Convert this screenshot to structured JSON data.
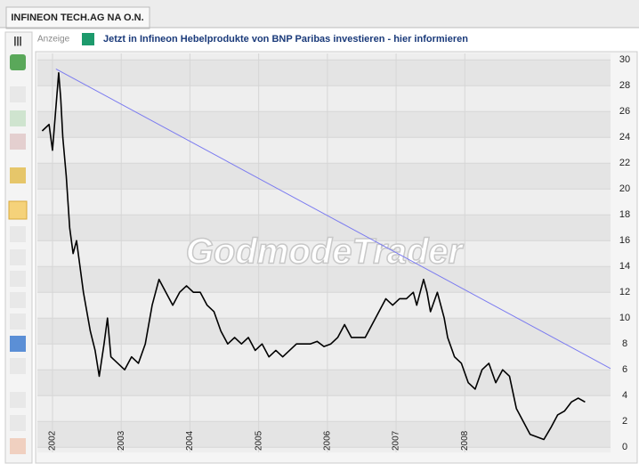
{
  "tab_title": "INFINEON TECH.AG NA O.N.",
  "toolbar_label": "|||",
  "ad": {
    "label": "Anzeige",
    "text": "Jetzt in Infineon Hebelprodukte von BNP Paribas investieren - hier informieren"
  },
  "watermark": "GodmodeTrader",
  "chart_data": {
    "type": "line",
    "x": [
      2001.85,
      2001.95,
      2002.0,
      2002.09,
      2002.12,
      2002.15,
      2002.2,
      2002.25,
      2002.3,
      2002.35,
      2002.45,
      2002.55,
      2002.62,
      2002.68,
      2002.75,
      2002.8,
      2002.85,
      2002.95,
      2003.05,
      2003.15,
      2003.25,
      2003.35,
      2003.45,
      2003.55,
      2003.65,
      2003.75,
      2003.85,
      2003.95,
      2004.05,
      2004.15,
      2004.25,
      2004.35,
      2004.45,
      2004.55,
      2004.65,
      2004.75,
      2004.85,
      2004.95,
      2005.05,
      2005.15,
      2005.25,
      2005.35,
      2005.45,
      2005.55,
      2005.65,
      2005.75,
      2005.85,
      2005.95,
      2006.05,
      2006.15,
      2006.25,
      2006.35,
      2006.45,
      2006.55,
      2006.65,
      2006.75,
      2006.85,
      2006.95,
      2007.05,
      2007.15,
      2007.25,
      2007.3,
      2007.4,
      2007.45,
      2007.5,
      2007.6,
      2007.7,
      2007.75,
      2007.85,
      2007.95,
      2008.05,
      2008.15,
      2008.25,
      2008.35,
      2008.45,
      2008.55,
      2008.65,
      2008.75,
      2008.85,
      2008.95,
      2009.05,
      2009.15,
      2009.25,
      2009.35,
      2009.45,
      2009.55,
      2009.65,
      2009.75
    ],
    "series": [
      {
        "color": "#000000",
        "values": [
          24.5,
          25,
          23,
          29,
          27,
          24,
          21,
          17,
          15,
          16,
          12,
          9,
          7.5,
          5.5,
          8,
          10,
          7,
          6.5,
          6,
          7,
          6.5,
          8,
          11,
          13,
          12,
          11,
          12,
          12.5,
          12,
          12,
          11,
          10.5,
          9,
          8,
          8.5,
          8,
          8.5,
          7.5,
          8,
          7,
          7.5,
          7,
          7.5,
          8,
          8,
          8,
          8.2,
          7.8,
          8,
          8.5,
          9.5,
          8.5,
          8.5,
          8.5,
          9.5,
          10.5,
          11.5,
          11,
          11.5,
          11.5,
          12,
          11,
          13,
          12,
          10.5,
          12,
          10,
          8.5,
          7,
          6.5,
          5,
          4.5,
          6,
          6.5,
          5,
          6,
          5.5,
          3,
          2,
          1,
          0.8,
          0.6,
          1.5,
          2.5,
          2.8,
          3.5,
          3.8,
          3.5
        ]
      }
    ],
    "trendline": {
      "color": "#7b7bf0",
      "x": [
        2002.05,
        2010.12
      ],
      "y": [
        29.3,
        6.1
      ]
    },
    "xlim": [
      2001.78,
      2010.12
    ],
    "ylim": [
      -0.4,
      30.5
    ],
    "xticks": [
      2002,
      2003,
      2004,
      2005,
      2006,
      2007,
      2008
    ],
    "yticks": [
      0,
      2,
      4,
      6,
      8,
      10,
      12,
      14,
      16,
      18,
      20,
      22,
      24,
      26,
      28,
      30
    ],
    "grid": true
  }
}
